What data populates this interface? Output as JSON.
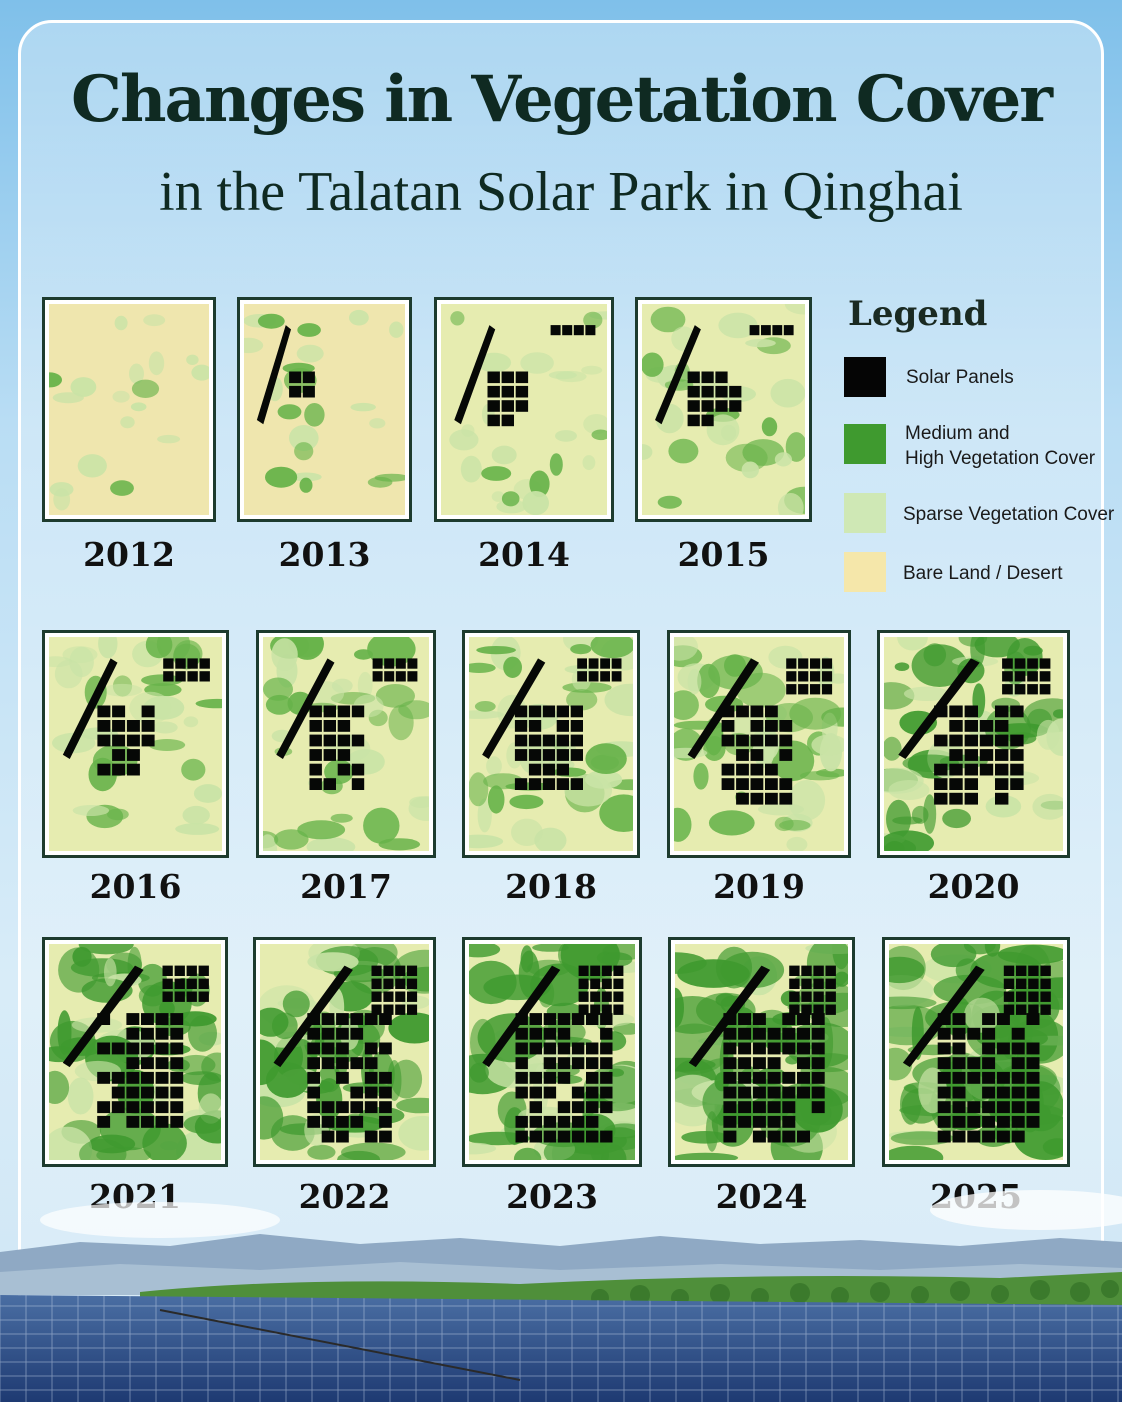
{
  "title": {
    "line1": "Changes in Vegetation Cover",
    "line2": "in the Talatan Solar Park in Qinghai"
  },
  "legend": {
    "heading": "Legend",
    "items": [
      {
        "label": "Solar Panels",
        "color": "#050505"
      },
      {
        "label": "Medium and",
        "label2": "High Vegetation Cover",
        "color": "#3f9a2f"
      },
      {
        "label": "Sparse Vegetation Cover",
        "color": "#cfe8b5"
      },
      {
        "label": "Bare Land / Desert",
        "color": "#f5e7aa"
      }
    ]
  },
  "years": [
    "2012",
    "2013",
    "2014",
    "2015",
    "2016",
    "2017",
    "2018",
    "2019",
    "2020",
    "2021",
    "2022",
    "2023",
    "2024",
    "2025"
  ]
}
